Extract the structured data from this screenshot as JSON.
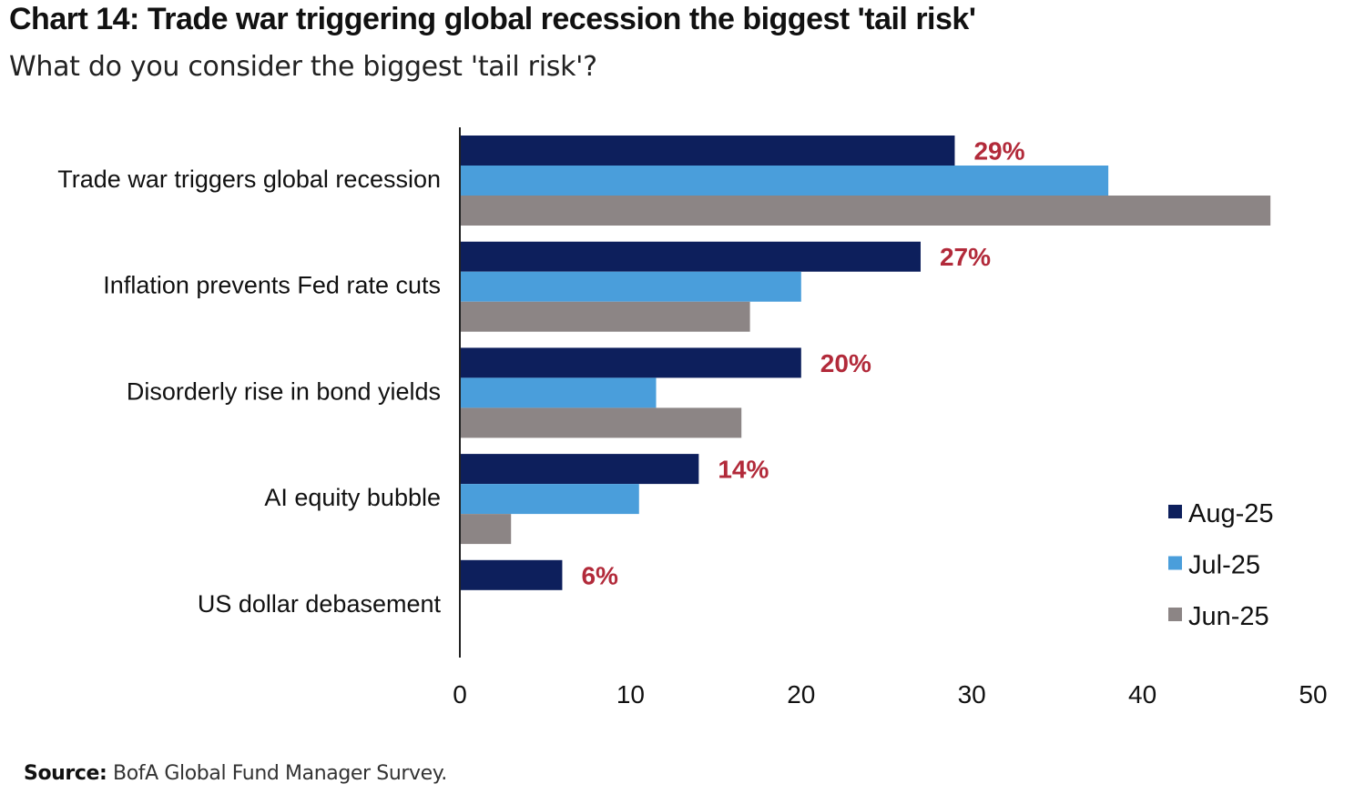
{
  "header": {
    "title": "Chart 14: Trade war triggering global recession the biggest 'tail risk'",
    "subtitle": "What do you consider the biggest 'tail risk'?"
  },
  "footer": {
    "source_label": "Source:",
    "source_text": "BofA Global Fund Manager Survey."
  },
  "colors": {
    "Aug-25": "#0d1f5c",
    "Jul-25": "#4a9edb",
    "Jun-25": "#8c8585",
    "data_label": "#b22a3a",
    "axis": "#222222"
  },
  "chart_data": {
    "type": "bar",
    "orientation": "horizontal",
    "title": "Chart 14: Trade war triggering global recession the biggest 'tail risk'",
    "subtitle": "What do you consider the biggest 'tail risk'?",
    "categories": [
      "Trade war triggers global recession",
      "Inflation prevents Fed rate cuts",
      "Disorderly rise in bond yields",
      "AI equity bubble",
      "US dollar debasement"
    ],
    "series": [
      {
        "name": "Aug-25",
        "values": [
          29,
          27,
          20,
          14,
          6
        ]
      },
      {
        "name": "Jul-25",
        "values": [
          38,
          20,
          11.5,
          10.5,
          null
        ]
      },
      {
        "name": "Jun-25",
        "values": [
          47.5,
          17,
          16.5,
          3,
          null
        ]
      }
    ],
    "data_labels": [
      "29%",
      "27%",
      "20%",
      "14%",
      "6%"
    ],
    "xlim": [
      0,
      50
    ],
    "xticks": [
      0,
      10,
      20,
      30,
      40,
      50
    ],
    "xlabel": "",
    "ylabel": "",
    "grid": false,
    "legend": {
      "position": "bottom-right",
      "entries": [
        "Aug-25",
        "Jul-25",
        "Jun-25"
      ]
    }
  }
}
